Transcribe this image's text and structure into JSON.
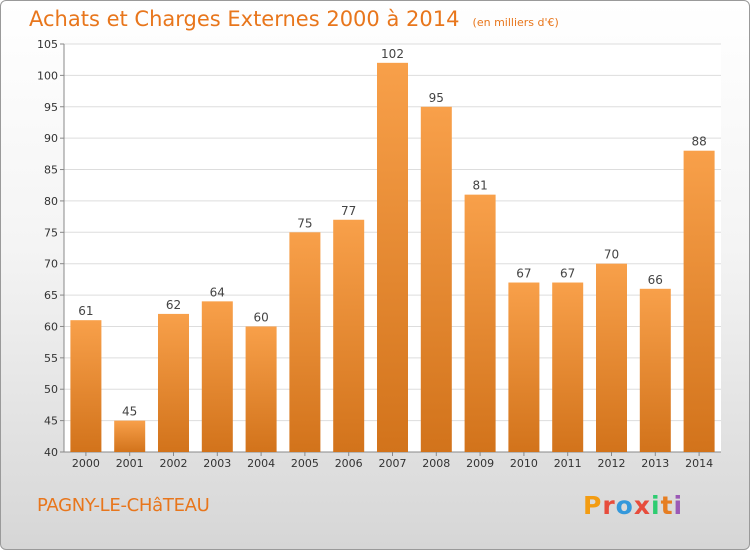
{
  "header": {
    "title": "Achats et Charges Externes 2000 à 2014",
    "subtitle": "(en milliers d'€)"
  },
  "footer": {
    "commune": "PAGNY-LE-CHâTEAU",
    "logo_text": "Proxiti",
    "logo_colors": [
      "#f39c12",
      "#e74c3c",
      "#3498db",
      "#e74c3c",
      "#2ecc71",
      "#e67e22",
      "#9b59b6"
    ]
  },
  "chart_data": {
    "type": "bar",
    "categories": [
      "2000",
      "2001",
      "2002",
      "2003",
      "2004",
      "2005",
      "2006",
      "2007",
      "2008",
      "2009",
      "2010",
      "2011",
      "2012",
      "2013",
      "2014"
    ],
    "values": [
      61,
      45,
      62,
      64,
      60,
      75,
      77,
      102,
      95,
      81,
      67,
      67,
      70,
      66,
      88
    ],
    "title": "Achats et Charges Externes 2000 à 2014",
    "subtitle": "(en milliers d'€)",
    "xlabel": "",
    "ylabel": "",
    "ylim": [
      40,
      105
    ],
    "yticks": [
      40,
      45,
      50,
      55,
      60,
      65,
      70,
      75,
      80,
      85,
      90,
      95,
      100,
      105
    ],
    "grid": true,
    "legend": "none",
    "bar_color_top": "#f8a04a",
    "bar_color_bottom": "#d2731b",
    "grid_color": "#dddddd"
  }
}
